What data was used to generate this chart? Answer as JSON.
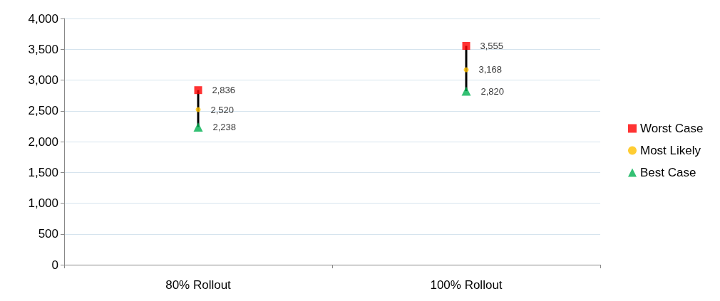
{
  "chart_data": {
    "type": "scatter",
    "categories": [
      "80% Rollout",
      "100% Rollout"
    ],
    "series": [
      {
        "name": "Worst Case",
        "color": "#ff0000",
        "marker": "square",
        "values": [
          2836,
          3555
        ],
        "value_labels": [
          "2,836",
          "3,555"
        ]
      },
      {
        "name": "Most Likely",
        "color": "#ffc000",
        "marker": "circle",
        "values": [
          2520,
          3168
        ],
        "value_labels": [
          "2,520",
          "3,168"
        ]
      },
      {
        "name": "Best Case",
        "color": "#00b050",
        "marker": "triangle",
        "values": [
          2238,
          2820
        ],
        "value_labels": [
          "2,238",
          "2,820"
        ]
      }
    ],
    "ylim": [
      0,
      4000
    ],
    "yticks": [
      0,
      500,
      {
        "value": 1000,
        "label": "1,000"
      },
      {
        "value": 1500,
        "label": "1,500"
      },
      {
        "value": 2000,
        "label": "2,000"
      },
      {
        "value": 2500,
        "label": "2,500"
      },
      {
        "value": 3000,
        "label": "3,000"
      },
      {
        "value": 3500,
        "label": "3,500"
      },
      {
        "value": 4000,
        "label": "4,000"
      }
    ],
    "grid": "y",
    "legend": "right"
  }
}
